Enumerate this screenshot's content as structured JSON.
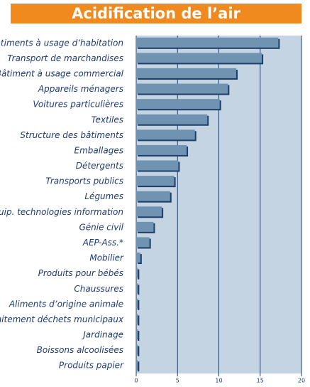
{
  "chart_data": {
    "type": "bar",
    "orientation": "horizontal",
    "title": "Acidification de l’air",
    "categories": [
      "Bâtiments à usage d’habitation",
      "Transport de marchandises",
      "Bâtiment à usage commercial",
      "Appareils ménagers",
      "Voitures particulières",
      "Textiles",
      "Structure des bâtiments",
      "Emballages",
      "Détergents",
      "Transports publics",
      "Légumes",
      "Equip. technologies information",
      "Génie civil",
      "AEP-Ass.*",
      "Mobilier",
      "Produits pour bébés",
      "Chaussures",
      "Aliments d’origine animale",
      "Traitement déchets municipaux",
      "Jardinage",
      "Boissons alcoolisées",
      "Produits papier"
    ],
    "values": [
      17.2,
      15.2,
      12.1,
      11.1,
      10.1,
      8.6,
      7.1,
      6.1,
      5.1,
      4.6,
      4.1,
      3.1,
      2.1,
      1.6,
      0.5,
      0.2,
      0.2,
      0.2,
      0.2,
      0.2,
      0.2,
      0.2
    ],
    "color": "#6f93b0",
    "shadow_color": "#1d3e6a",
    "plot_background": "#c4d4e2",
    "xlim": [
      0,
      20
    ],
    "xticks": [
      0,
      5,
      10,
      15,
      20
    ],
    "grid": true
  }
}
